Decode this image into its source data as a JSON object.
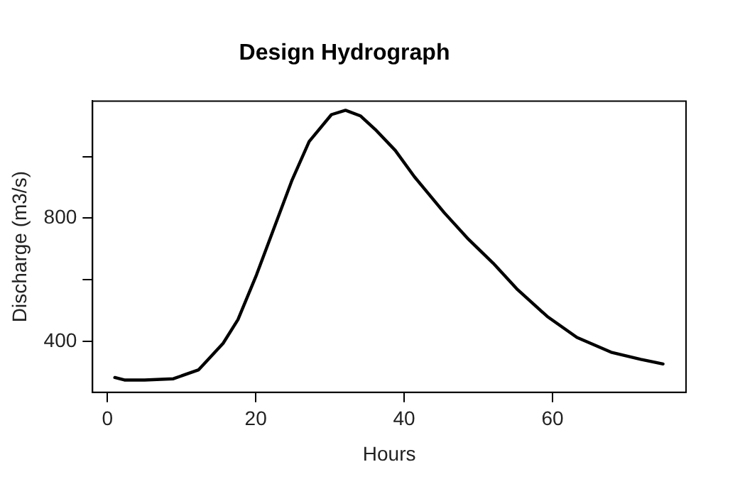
{
  "chart_data": {
    "type": "line",
    "title": "Design Hydrograph",
    "xlabel": "Hours",
    "ylabel": "Discharge (m3/s)",
    "series": [
      {
        "color": "#000000",
        "x": [
          1.0,
          2.3,
          5.0,
          8.9,
          12.3,
          15.6,
          17.6,
          20.1,
          22.2,
          24.9,
          27.2,
          30.2,
          32.1,
          34.1,
          36.1,
          38.8,
          41.4,
          45.4,
          48.7,
          52.0,
          55.3,
          59.3,
          63.3,
          67.9,
          71.9,
          74.9
        ],
        "values": [
          283,
          275,
          275,
          279,
          308,
          394,
          471,
          616,
          751,
          924,
          1049,
          1136,
          1150,
          1132,
          1088,
          1020,
          934,
          818,
          731,
          654,
          568,
          481,
          413,
          365,
          342,
          327
        ]
      }
    ],
    "xlim": [
      -2,
      78
    ],
    "xticks": [
      0,
      20,
      40,
      60
    ],
    "ylim": [
      235,
      1180
    ],
    "yticks": [
      400,
      {
        "value": 600,
        "label": null
      },
      800,
      {
        "value": 1000,
        "label": null
      }
    ],
    "grid": false,
    "legend": false,
    "marker": "none",
    "line_style": "solid"
  }
}
